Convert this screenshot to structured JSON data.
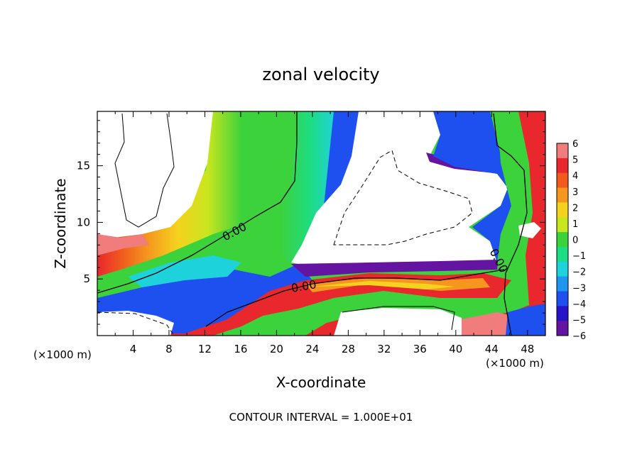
{
  "chart_data": {
    "type": "heatmap",
    "title": "zonal velocity",
    "xlabel": "X-coordinate",
    "ylabel": "Z-coordinate",
    "x_unit_label": "(×1000 m)",
    "x_unit_label_right": "(×1000 m)",
    "footer": "CONTOUR INTERVAL = 1.000E+01",
    "xlim": [
      0,
      50
    ],
    "ylim": [
      0,
      19.8
    ],
    "x_ticks": [
      "4",
      "8",
      "12",
      "16",
      "20",
      "24",
      "28",
      "32",
      "36",
      "40",
      "44",
      "48"
    ],
    "y_ticks": [
      "5",
      "10",
      "15"
    ],
    "contour_labels": [
      "0.00",
      "0.00",
      "0.00"
    ],
    "colorbar": {
      "range": [
        -6,
        6
      ],
      "tick_labels": [
        "6",
        "5",
        "4",
        "3",
        "2",
        "1",
        "0",
        "−1",
        "−2",
        "−3",
        "−4",
        "−5",
        "−6"
      ],
      "colors": [
        "#f07c7c",
        "#e8282d",
        "#f05a1e",
        "#f5961e",
        "#f5d21e",
        "#c8e61e",
        "#3cd23c",
        "#1edc82",
        "#1ed2dc",
        "#1e96f0",
        "#1e50f0",
        "#2814c8",
        "#6414a0"
      ]
    }
  }
}
